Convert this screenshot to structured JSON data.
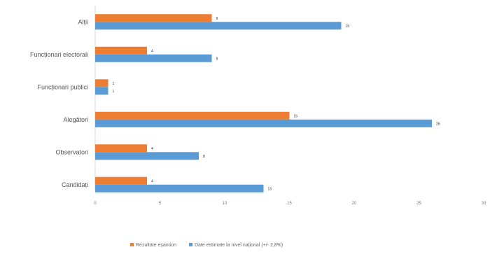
{
  "chart_data": {
    "type": "bar",
    "orientation": "horizontal",
    "categories": [
      "Alții",
      "Funcționari electorali",
      "Funcționari publici",
      "Alegători",
      "Observatori",
      "Candidați"
    ],
    "series": [
      {
        "name": "Rezultate eșantion",
        "color": "#ed7d31",
        "values": [
          9,
          4,
          1,
          15,
          4,
          4
        ]
      },
      {
        "name": "Date estimate la nivel național (+/- 2,8%)",
        "color": "#5b9bd5",
        "values": [
          19,
          9,
          1,
          26,
          8,
          13
        ]
      }
    ],
    "xlim": [
      0,
      30
    ],
    "xticks": [
      "0",
      "5",
      "10",
      "15",
      "20",
      "25",
      "30"
    ],
    "grid": false,
    "legend_position": "bottom"
  }
}
